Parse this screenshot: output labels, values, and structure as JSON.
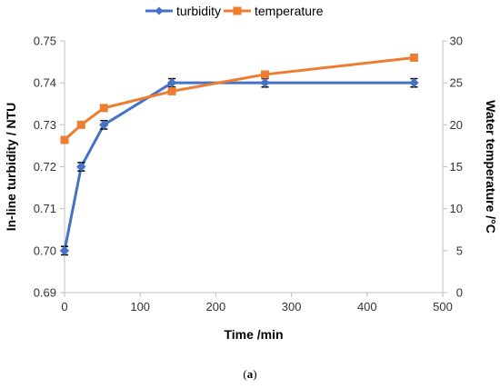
{
  "caption": {
    "open": "(",
    "letter": "a",
    "close": ")"
  },
  "chart_data": {
    "type": "line",
    "x": [
      0,
      22,
      52,
      142,
      265,
      462
    ],
    "xlabel": "Time /min",
    "xlim": [
      0,
      500
    ],
    "xticks": [
      0,
      100,
      200,
      300,
      400,
      500
    ],
    "ylabel": "In-line turbidity / NTU",
    "ylim": [
      0.69,
      0.75
    ],
    "yticks": [
      "0.69",
      "0.70",
      "0.71",
      "0.72",
      "0.73",
      "0.74",
      "0.75"
    ],
    "y2label": "Water temperature /°C",
    "y2lim": [
      0,
      30
    ],
    "y2ticks": [
      0,
      5,
      10,
      15,
      20,
      25,
      30
    ],
    "legend_position": "top",
    "grid": false,
    "series": [
      {
        "name": "turbidity",
        "axis": "left",
        "color": "#4472C4",
        "marker": "diamond",
        "values": [
          0.7,
          0.72,
          0.73,
          0.74,
          0.74,
          0.74
        ],
        "error": [
          0.001,
          0.001,
          0.001,
          0.001,
          0.001,
          0.001
        ]
      },
      {
        "name": "temperature",
        "axis": "right",
        "color": "#ED7D31",
        "marker": "square",
        "values": [
          18.2,
          20.0,
          22.0,
          24.0,
          26.0,
          28.0
        ]
      }
    ]
  }
}
